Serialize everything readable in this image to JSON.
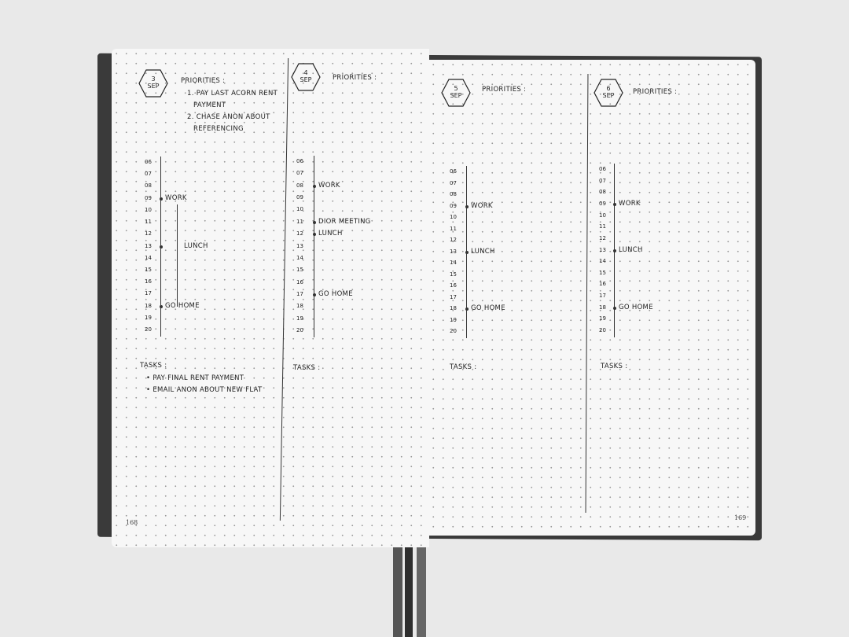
{
  "left_page_number": "168",
  "right_page_number": "169",
  "hours": [
    "06",
    "07",
    "08",
    "09",
    "10",
    "11",
    "12",
    "13",
    "14",
    "15",
    "16",
    "17",
    "18",
    "19",
    "20"
  ],
  "columns": [
    {
      "day": "3",
      "month": "SEP",
      "priorities_label": "PRIORITIES :",
      "priorities": [
        "1. PAY LAST ACORN RENT",
        "PAYMENT",
        "2. CHASE ANON ABOUT",
        "REFERENCING"
      ],
      "events": [
        {
          "hour": "09",
          "label": "WORK"
        },
        {
          "hour": "13",
          "label": "LUNCH"
        },
        {
          "hour": "18",
          "label": "GO HOME"
        }
      ],
      "tasks_label": "TASKS :",
      "tasks": [
        "PAY FINAL RENT PAYMENT",
        "EMAIL ANON ABOUT NEW FLAT"
      ]
    },
    {
      "day": "4",
      "month": "SEP",
      "priorities_label": "PRIORITIES :",
      "priorities": [],
      "events": [
        {
          "hour": "08",
          "label": "WORK"
        },
        {
          "hour": "11",
          "label": "DIOR MEETING"
        },
        {
          "hour": "12",
          "label": "LUNCH"
        },
        {
          "hour": "17",
          "label": "GO HOME"
        }
      ],
      "tasks_label": "TASKS :",
      "tasks": []
    },
    {
      "day": "5",
      "month": "SEP",
      "priorities_label": "PRIORITIES :",
      "priorities": [],
      "events": [
        {
          "hour": "09",
          "label": "WORK"
        },
        {
          "hour": "13",
          "label": "LUNCH"
        },
        {
          "hour": "18",
          "label": "GO HOME"
        }
      ],
      "tasks_label": "TASKS :",
      "tasks": []
    },
    {
      "day": "6",
      "month": "SEP",
      "priorities_label": "PRIORITIES :",
      "priorities": [],
      "events": [
        {
          "hour": "09",
          "label": "WORK"
        },
        {
          "hour": "13",
          "label": "LUNCH"
        },
        {
          "hour": "18",
          "label": "GO HOME"
        }
      ],
      "tasks_label": "TASKS :",
      "tasks": []
    }
  ]
}
